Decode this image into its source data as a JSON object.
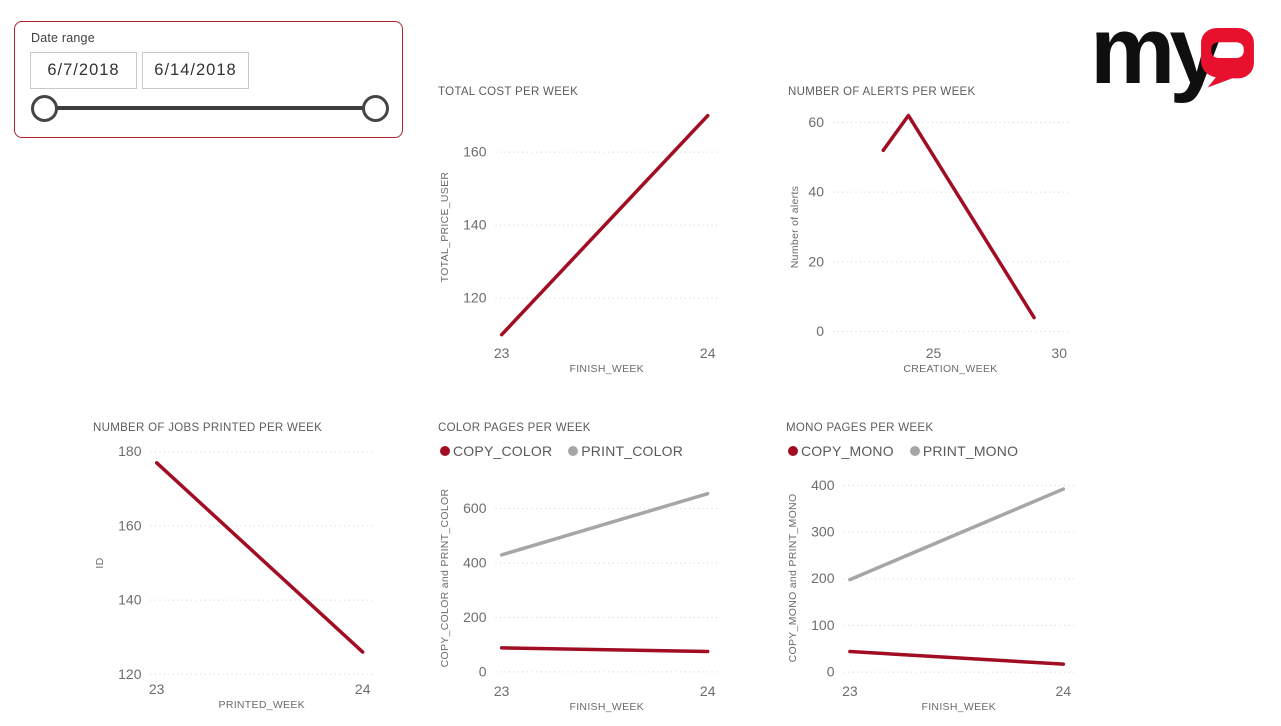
{
  "slicer": {
    "label": "Date range",
    "start_date": "6/7/2018",
    "end_date": "6/14/2018"
  },
  "logo": {
    "wordmark_my": "my",
    "wordmark_q": "Q"
  },
  "colors": {
    "brand_red": "#e8112d",
    "series_red": "#a10d22",
    "series_gray": "#a6a6a6",
    "slicer_border": "#b2222e",
    "grid_gray": "#d2d2d2",
    "tick_text": "#6d6d6d",
    "title_text": "#5c5c5c"
  },
  "chart_data": [
    {
      "type": "line",
      "title": "TOTAL COST PER WEEK",
      "xlabel": "FINISH_WEEK",
      "ylabel": "TOTAL_PRICE_USER",
      "xticks": [
        23,
        24
      ],
      "yticks": [
        120,
        140,
        160
      ],
      "xlim": [
        22.97,
        24.05
      ],
      "ylim": [
        108,
        171
      ],
      "grid": "horizontal-dotted",
      "legend": false,
      "series": [
        {
          "name": "TOTAL_PRICE_USER",
          "color_key": "series_red",
          "x": [
            23,
            24
          ],
          "y": [
            110,
            170
          ]
        }
      ]
    },
    {
      "type": "line",
      "title": "NUMBER OF ALERTS PER WEEK",
      "xlabel": "CREATION_WEEK",
      "ylabel": "Number of alerts",
      "xticks": [
        25,
        30
      ],
      "yticks": [
        0,
        20,
        40,
        60
      ],
      "xlim": [
        21,
        30.35
      ],
      "ylim": [
        -3,
        63
      ],
      "grid": "horizontal-dotted",
      "legend": false,
      "series": [
        {
          "name": "Number of alerts",
          "color_key": "series_red",
          "x": [
            23,
            24,
            29
          ],
          "y": [
            52,
            62,
            4
          ]
        }
      ]
    },
    {
      "type": "line",
      "title": "NUMBER OF JOBS PRINTED PER WEEK",
      "xlabel": "PRINTED_WEEK",
      "ylabel": "ID",
      "xticks": [
        23,
        24
      ],
      "yticks": [
        120,
        140,
        160,
        180
      ],
      "xlim": [
        22.97,
        24.05
      ],
      "ylim": [
        119,
        181
      ],
      "grid": "horizontal-dotted",
      "legend": false,
      "series": [
        {
          "name": "ID",
          "color_key": "series_red",
          "x": [
            23,
            24
          ],
          "y": [
            177,
            126
          ]
        }
      ]
    },
    {
      "type": "line",
      "title": "COLOR PAGES PER WEEK",
      "xlabel": "FINISH_WEEK",
      "ylabel": "COPY_COLOR and PRINT_COLOR",
      "xticks": [
        23,
        24
      ],
      "yticks": [
        0,
        200,
        400,
        600
      ],
      "xlim": [
        22.97,
        24.05
      ],
      "ylim": [
        -30,
        720
      ],
      "grid": "horizontal-dotted",
      "legend": true,
      "series": [
        {
          "name": "COPY_COLOR",
          "color_key": "series_red",
          "x": [
            23,
            24
          ],
          "y": [
            88,
            75
          ]
        },
        {
          "name": "PRINT_COLOR",
          "color_key": "series_gray",
          "x": [
            23,
            24
          ],
          "y": [
            430,
            655
          ]
        }
      ]
    },
    {
      "type": "line",
      "title": "MONO PAGES PER WEEK",
      "xlabel": "FINISH_WEEK",
      "ylabel": "COPY_MONO and PRINT_MONO",
      "xticks": [
        23,
        24
      ],
      "yticks": [
        0,
        100,
        200,
        300,
        400
      ],
      "xlim": [
        22.97,
        24.05
      ],
      "ylim": [
        -17,
        420
      ],
      "grid": "horizontal-dotted",
      "legend": true,
      "series": [
        {
          "name": "COPY_MONO",
          "color_key": "series_red",
          "x": [
            23,
            24
          ],
          "y": [
            44,
            17
          ]
        },
        {
          "name": "PRINT_MONO",
          "color_key": "series_gray",
          "x": [
            23,
            24
          ],
          "y": [
            198,
            392
          ]
        }
      ]
    }
  ]
}
